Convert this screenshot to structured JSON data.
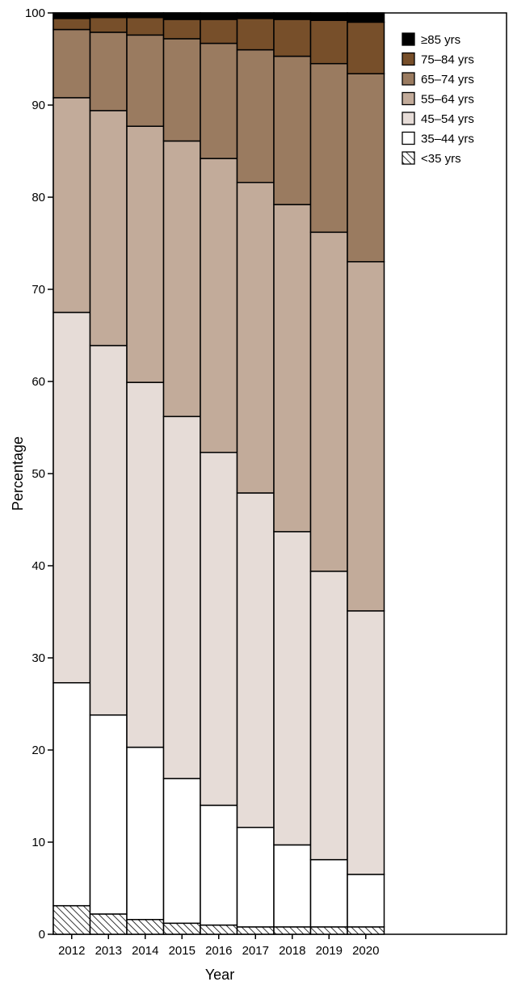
{
  "chart_data": {
    "type": "bar",
    "stacked": true,
    "percent_stacked": true,
    "title": "",
    "xlabel": "Year",
    "ylabel": "Percentage",
    "ylim": [
      0,
      100
    ],
    "yticks": [
      0,
      10,
      20,
      30,
      40,
      50,
      60,
      70,
      80,
      90,
      100
    ],
    "grid": false,
    "legend_position": "top-right",
    "categories": [
      "2012",
      "2013",
      "2014",
      "2015",
      "2016",
      "2017",
      "2018",
      "2019",
      "2020"
    ],
    "series": [
      {
        "name": "<35 yrs",
        "color": "#ffffff",
        "pattern": "hatch",
        "values": [
          3.1,
          2.2,
          1.6,
          1.2,
          1.0,
          0.8,
          0.8,
          0.8,
          0.8
        ]
      },
      {
        "name": "35–44 yrs",
        "color": "#ffffff",
        "values": [
          24.2,
          21.6,
          18.7,
          15.7,
          13.0,
          10.8,
          8.9,
          7.3,
          5.7
        ]
      },
      {
        "name": "45–54 yrs",
        "color": "#e6dcd7",
        "values": [
          40.2,
          40.1,
          39.6,
          39.3,
          38.3,
          36.3,
          34.0,
          31.3,
          28.6
        ]
      },
      {
        "name": "55–64 yrs",
        "color": "#c2ab9a",
        "values": [
          23.3,
          25.5,
          27.8,
          29.9,
          31.9,
          33.7,
          35.5,
          36.8,
          37.9
        ]
      },
      {
        "name": "65–74 yrs",
        "color": "#9a7b60",
        "values": [
          7.4,
          8.5,
          9.9,
          11.1,
          12.5,
          14.4,
          16.1,
          18.3,
          20.4
        ]
      },
      {
        "name": "75–84 yrs",
        "color": "#774f2a",
        "values": [
          1.2,
          1.6,
          1.9,
          2.1,
          2.6,
          3.4,
          4.0,
          4.7,
          5.6
        ]
      },
      {
        "name": "≥85 yrs",
        "color": "#000000",
        "values": [
          0.6,
          0.5,
          0.5,
          0.7,
          0.7,
          0.6,
          0.7,
          0.8,
          1.0
        ]
      }
    ]
  }
}
